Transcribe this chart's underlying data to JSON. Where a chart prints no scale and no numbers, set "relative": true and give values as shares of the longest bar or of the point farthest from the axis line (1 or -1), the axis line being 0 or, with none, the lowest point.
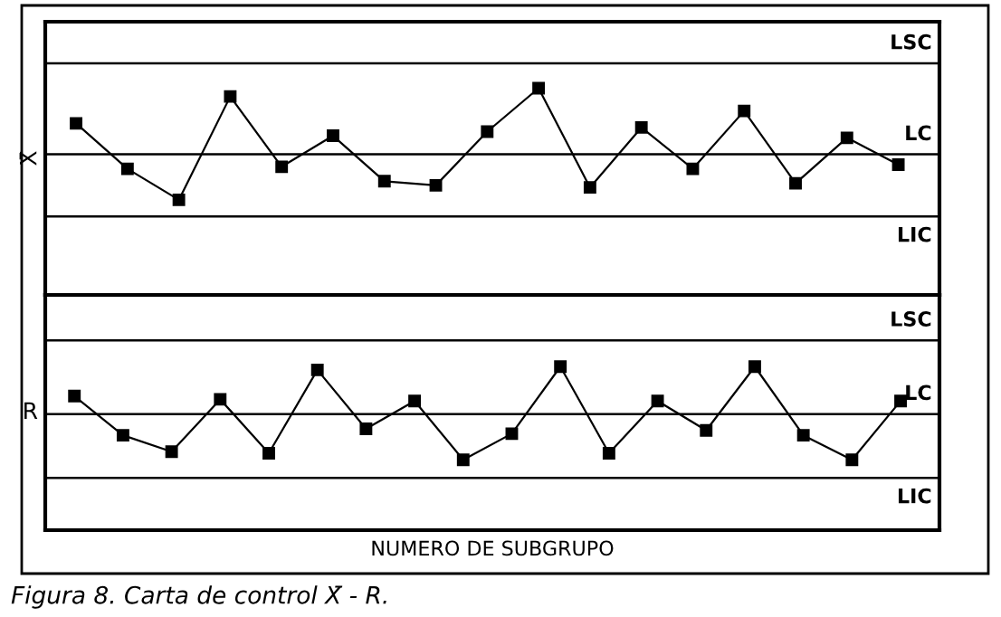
{
  "chart_data": [
    {
      "type": "line",
      "relative": true,
      "ylabel": "X̄",
      "categories": [
        null,
        null,
        null,
        null,
        null,
        null,
        null,
        null,
        null,
        null,
        null,
        null,
        null,
        null,
        null,
        null,
        null
      ],
      "series": [
        {
          "color": "#000000",
          "values": [
            0.83,
            0.61,
            0.46,
            0.96,
            0.62,
            0.77,
            0.55,
            0.53,
            0.79,
            1,
            0.52,
            0.81,
            0.61,
            0.89,
            0.54,
            0.76,
            0.63
          ]
        }
      ],
      "marker": "square",
      "line_style": "solid",
      "tick_labels": false,
      "ref_lines": [
        {
          "axis": "y",
          "value": 1.12,
          "label": "LSC",
          "color": "#000000"
        },
        {
          "axis": "y",
          "value": 0.68,
          "label": "LC",
          "color": "#000000"
        },
        {
          "axis": "y",
          "value": 0.38,
          "label": "LIC",
          "color": "#000000"
        }
      ]
    },
    {
      "type": "line",
      "relative": true,
      "ylabel": "R",
      "xlabel": "NUMERO DE SUBGRUPO",
      "categories": [
        null,
        null,
        null,
        null,
        null,
        null,
        null,
        null,
        null,
        null,
        null,
        null,
        null,
        null,
        null,
        null,
        null,
        null
      ],
      "series": [
        {
          "color": "#000000",
          "values": [
            0.82,
            0.58,
            0.48,
            0.8,
            0.47,
            0.98,
            0.62,
            0.79,
            0.43,
            0.59,
            1,
            0.47,
            0.79,
            0.61,
            1,
            0.58,
            0.43,
            0.79
          ]
        }
      ],
      "marker": "square",
      "line_style": "solid",
      "tick_labels": false,
      "ref_lines": [
        {
          "axis": "y",
          "value": 1.16,
          "label": "LSC",
          "color": "#000000"
        },
        {
          "axis": "y",
          "value": 0.71,
          "label": "LC",
          "color": "#000000"
        },
        {
          "axis": "y",
          "value": 0.32,
          "label": "LIC",
          "color": "#000000"
        }
      ],
      "annotations": [
        "Figura 8. Carta de control X̄ - R."
      ]
    }
  ]
}
